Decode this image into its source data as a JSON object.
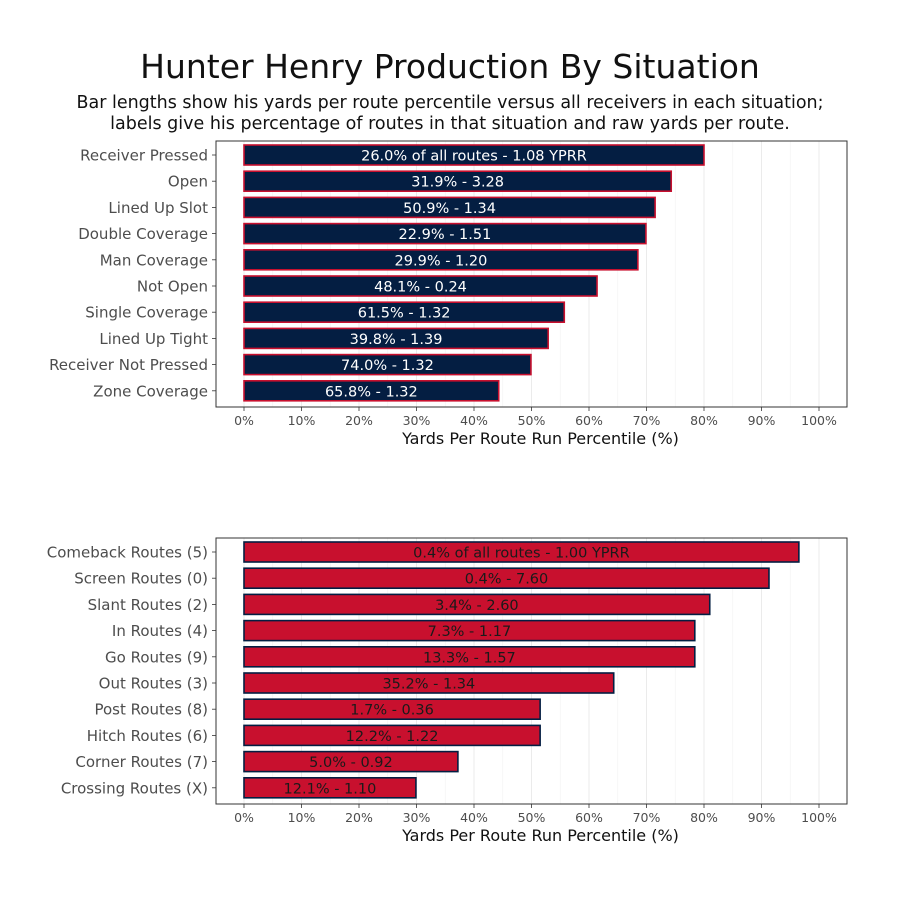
{
  "title": "Hunter Henry Production By Situation",
  "subtitle_line1": "Bar lengths show his yards per route percentile versus all receivers in each situation;",
  "subtitle_line2": "labels give his percentage of routes in that situation and raw yards per route.",
  "chart_data": [
    {
      "type": "bar",
      "orientation": "horizontal",
      "xlabel": "Yards Per Route Run Percentile (%)",
      "xlim": [
        0,
        100
      ],
      "xticks": [
        "0%",
        "10%",
        "20%",
        "30%",
        "40%",
        "50%",
        "60%",
        "70%",
        "80%",
        "90%",
        "100%"
      ],
      "grid": true,
      "bar_fill": "#041E42",
      "bar_outline": "#C8102E",
      "label_color": "#ffffff",
      "categories": [
        "Receiver Pressed",
        "Open",
        "Lined Up Slot",
        "Double Coverage",
        "Man Coverage",
        "Not Open",
        "Single Coverage",
        "Lined Up Tight",
        "Receiver Not Pressed",
        "Zone Coverage"
      ],
      "values": [
        80.0,
        74.3,
        71.5,
        69.9,
        68.5,
        61.4,
        55.7,
        52.9,
        49.9,
        44.3
      ],
      "labels": [
        "26.0% of all routes - 1.08 YPRR",
        "31.9% - 3.28",
        "50.9% - 1.34",
        "22.9% - 1.51",
        "29.9% - 1.20",
        "48.1% - 0.24",
        "61.5% - 1.32",
        "39.8% - 1.39",
        "74.0% - 1.32",
        "65.8% - 1.32"
      ]
    },
    {
      "type": "bar",
      "orientation": "horizontal",
      "xlabel": "Yards Per Route Run Percentile (%)",
      "xlim": [
        0,
        100
      ],
      "xticks": [
        "0%",
        "10%",
        "20%",
        "30%",
        "40%",
        "50%",
        "60%",
        "70%",
        "80%",
        "90%",
        "100%"
      ],
      "grid": true,
      "bar_fill": "#C8102E",
      "bar_outline": "#041E42",
      "label_color": "#1a1a1a",
      "categories": [
        "Comeback Routes (5)",
        "Screen Routes (0)",
        "Slant Routes (2)",
        "In Routes (4)",
        "Go Routes (9)",
        "Out Routes (3)",
        "Post Routes (8)",
        "Hitch Routes (6)",
        "Corner Routes (7)",
        "Crossing Routes (X)"
      ],
      "values": [
        96.5,
        91.3,
        81.0,
        78.4,
        78.4,
        64.3,
        51.5,
        51.5,
        37.2,
        29.9
      ],
      "labels": [
        "0.4% of all routes - 1.00 YPRR",
        "0.4% - 7.60",
        "3.4% - 2.60",
        "7.3% - 1.17",
        "13.3% - 1.57",
        "35.2% - 1.34",
        "1.7% - 0.36",
        "12.2% - 1.22",
        "5.0% - 0.92",
        "12.1% - 1.10"
      ]
    }
  ]
}
